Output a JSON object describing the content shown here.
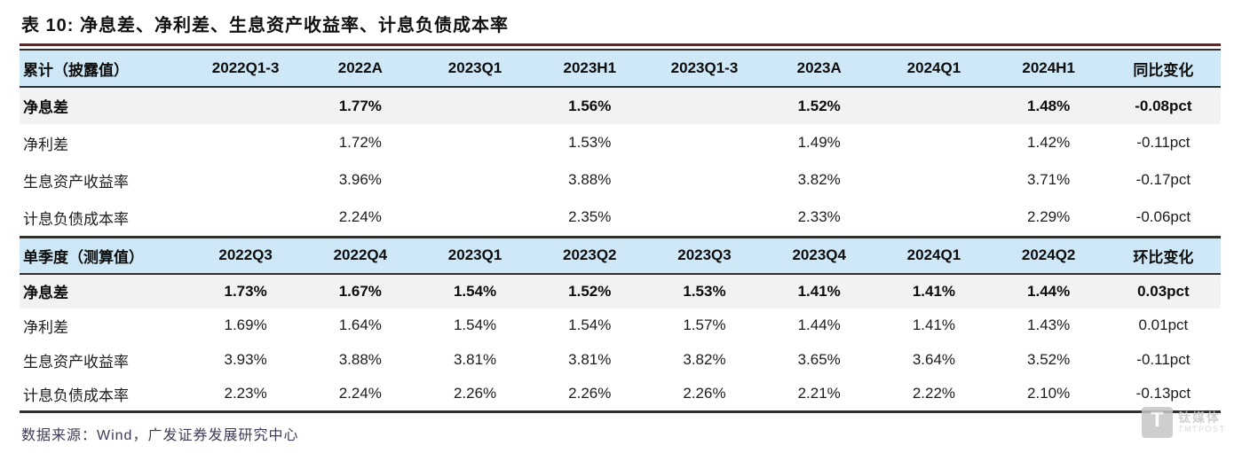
{
  "title": "表 10:  净息差、净利差、生息资产收益率、计息负债成本率",
  "table1": {
    "header": [
      "累计（披露值）",
      "2022Q1-3",
      "2022A",
      "2023Q1",
      "2023H1",
      "2023Q1-3",
      "2023A",
      "2024Q1",
      "2024H1",
      "同比变化"
    ],
    "rows": [
      {
        "label": "净息差",
        "bold": true,
        "values": [
          "",
          "1.77%",
          "",
          "1.56%",
          "",
          "1.52%",
          "",
          "1.48%",
          "-0.08pct"
        ]
      },
      {
        "label": "净利差",
        "bold": false,
        "values": [
          "",
          "1.72%",
          "",
          "1.53%",
          "",
          "1.49%",
          "",
          "1.42%",
          "-0.11pct"
        ]
      },
      {
        "label": "生息资产收益率",
        "bold": false,
        "values": [
          "",
          "3.96%",
          "",
          "3.88%",
          "",
          "3.82%",
          "",
          "3.71%",
          "-0.17pct"
        ]
      },
      {
        "label": "计息负债成本率",
        "bold": false,
        "values": [
          "",
          "2.24%",
          "",
          "2.35%",
          "",
          "2.33%",
          "",
          "2.29%",
          "-0.06pct"
        ]
      }
    ]
  },
  "table2": {
    "header": [
      "单季度（测算值）",
      "2022Q3",
      "2022Q4",
      "2023Q1",
      "2023Q2",
      "2023Q3",
      "2023Q4",
      "2024Q1",
      "2024Q2",
      "环比变化"
    ],
    "rows": [
      {
        "label": "净息差",
        "bold": true,
        "values": [
          "1.73%",
          "1.67%",
          "1.54%",
          "1.52%",
          "1.53%",
          "1.41%",
          "1.41%",
          "1.44%",
          "0.03pct"
        ]
      },
      {
        "label": "净利差",
        "bold": false,
        "values": [
          "1.69%",
          "1.64%",
          "1.54%",
          "1.54%",
          "1.57%",
          "1.44%",
          "1.41%",
          "1.43%",
          "0.01pct"
        ]
      },
      {
        "label": "生息资产收益率",
        "bold": false,
        "values": [
          "3.93%",
          "3.88%",
          "3.81%",
          "3.81%",
          "3.82%",
          "3.65%",
          "3.64%",
          "3.52%",
          "-0.11pct"
        ]
      },
      {
        "label": "计息负债成本率",
        "bold": false,
        "values": [
          "2.23%",
          "2.24%",
          "2.26%",
          "2.26%",
          "2.26%",
          "2.21%",
          "2.22%",
          "2.10%",
          "-0.13pct"
        ]
      }
    ]
  },
  "source": "数据来源：Wind，广发证券发展研究中心",
  "watermark": {
    "logo_letter": "T",
    "name_cn": "钛媒体",
    "name_en": "TMTPOST"
  },
  "colors": {
    "header_bg": "#cfe8f7",
    "highlight_row_bg": "#f2f2f2",
    "rule_dark": "#2f2f2f",
    "title_rule_red": "#6e2022",
    "source_text": "#3d3d56",
    "watermark_gray": "#c6c6c6"
  }
}
